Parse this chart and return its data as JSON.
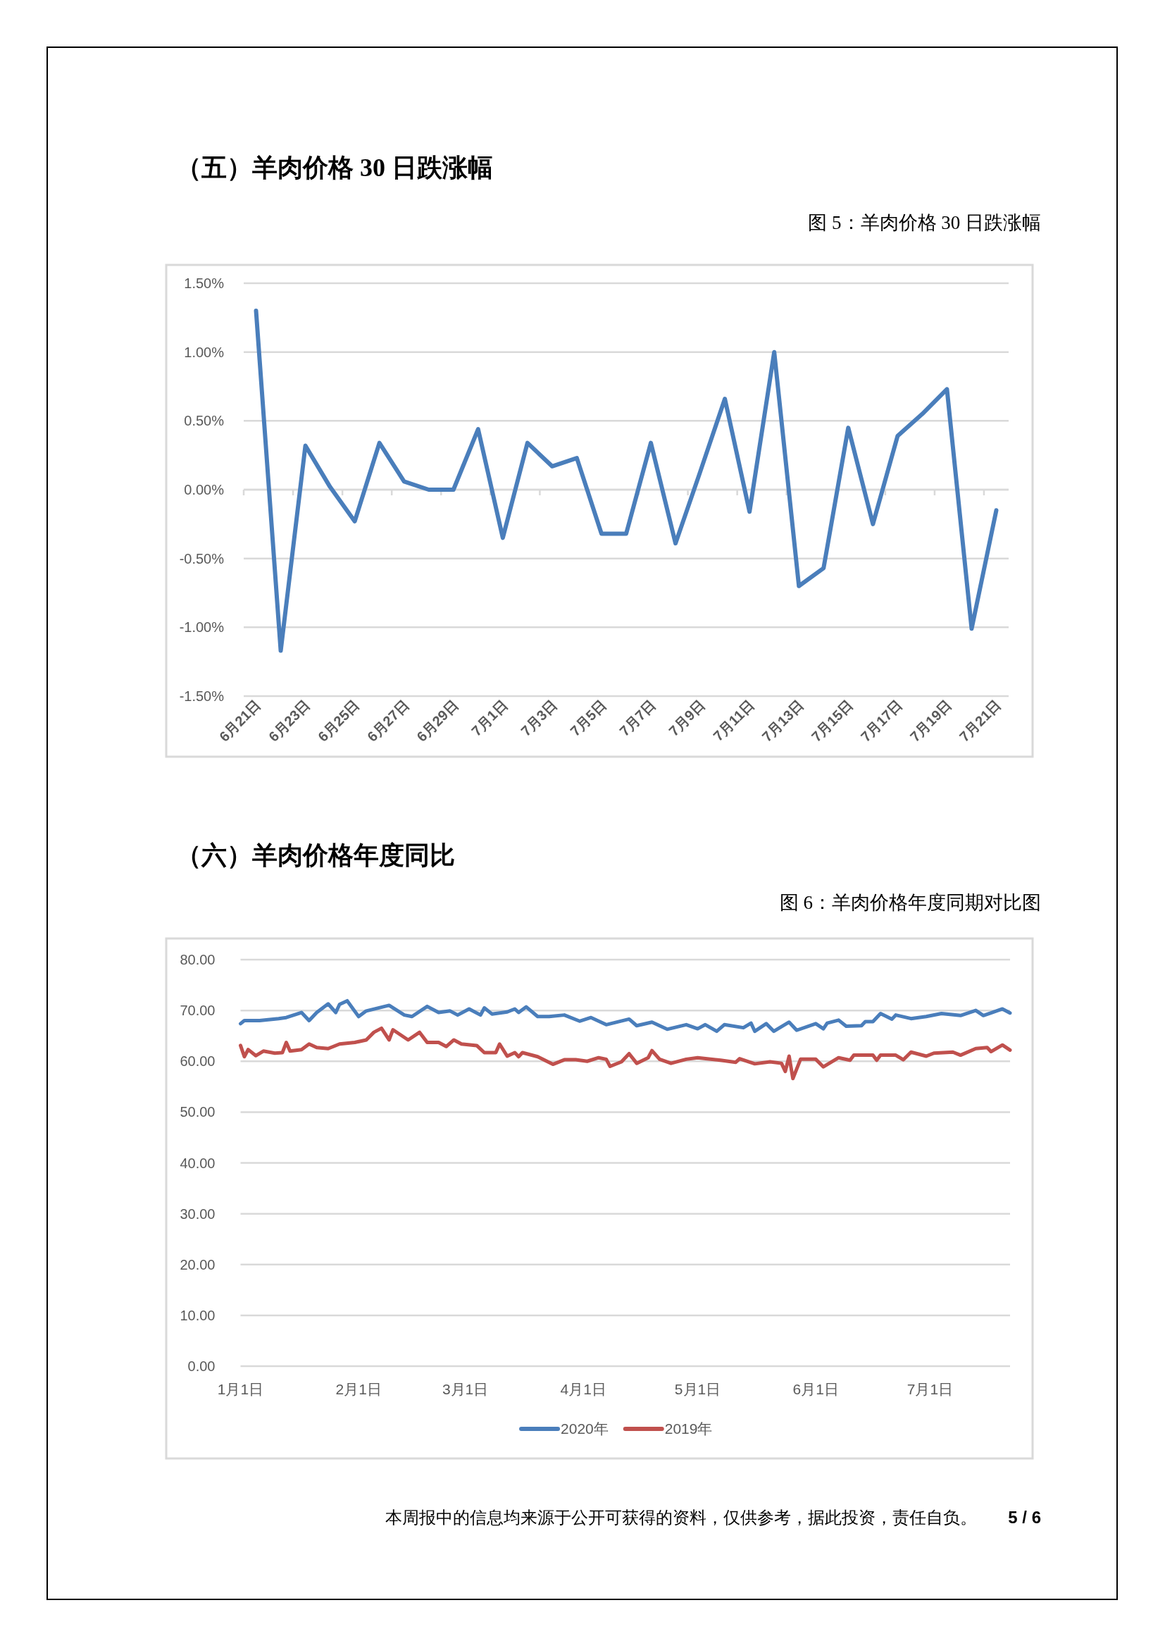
{
  "chart_data": [
    {
      "type": "line",
      "title": "（五）羊肉价格 30 日跌涨幅",
      "subtitle": "图 5：羊肉价格 30 日跌涨幅",
      "categories": [
        "6月21日",
        null,
        "6月23日",
        null,
        "6月25日",
        null,
        "6月27日",
        null,
        "6月29日",
        null,
        "7月1日",
        null,
        "7月3日",
        null,
        "7月5日",
        null,
        "7月7日",
        null,
        "7月9日",
        null,
        "7月11日",
        null,
        "7月13日",
        null,
        "7月15日",
        null,
        "7月17日",
        null,
        "7月19日",
        null,
        "7月21日"
      ],
      "series": [
        {
          "color": "#4a7ebb",
          "values": [
            1.3,
            -1.17,
            0.32,
            0.02,
            -0.23,
            0.34,
            0.06,
            0.0,
            0.0,
            0.44,
            -0.35,
            0.34,
            0.17,
            0.23,
            -0.32,
            -0.32,
            0.34,
            -0.39,
            0.13,
            0.66,
            -0.16,
            1.0,
            -0.7,
            -0.57,
            0.45,
            -0.25,
            0.39,
            0.55,
            0.73,
            -1.01,
            -0.15
          ]
        }
      ],
      "ylim": [
        -1.5,
        1.5
      ],
      "yticks": [
        {
          "value": 1.5,
          "label": "1.50%"
        },
        {
          "value": 1.0,
          "label": "1.00%"
        },
        {
          "value": 0.5,
          "label": "0.50%"
        },
        {
          "value": 0,
          "label": "0.00%"
        },
        {
          "value": -0.5,
          "label": "-0.50%"
        },
        {
          "value": -1.0,
          "label": "-1.00%"
        },
        {
          "value": -1.5,
          "label": "-1.50%"
        }
      ],
      "grid": "y"
    },
    {
      "type": "line",
      "title": "（六）羊肉价格年度同比",
      "subtitle": "图 6：羊肉价格年度同期对比图",
      "series": [
        {
          "name": "2020年",
          "color": "#4a7ebb",
          "x": [
            "--01-01",
            "--01-02",
            "--01-06",
            "--01-11",
            "--01-13",
            "--01-17",
            "--01-19",
            "--01-21",
            "--01-24",
            "--01-26",
            "--01-27",
            "--01-29",
            "--02-01",
            "--02-03",
            "--02-09",
            "--02-13",
            "--02-15",
            "--02-19",
            "--02-22",
            "--02-25",
            "--02-27",
            "--03-02",
            "--03-05",
            "--03-06",
            "--03-08",
            "--03-12",
            "--03-14",
            "--03-15",
            "--03-17",
            "--03-20",
            "--03-23",
            "--03-27",
            "--03-31",
            "--04-03",
            "--04-07",
            "--04-13",
            "--04-15",
            "--04-19",
            "--04-23",
            "--04-28",
            "--05-01",
            "--05-03",
            "--05-06",
            "--05-08",
            "--05-13",
            "--05-15",
            "--05-16",
            "--05-19",
            "--05-21",
            "--05-25",
            "--05-27",
            "--06-01",
            "--06-03",
            "--06-04",
            "--06-07",
            "--06-09",
            "--06-13",
            "--06-14",
            "--06-16",
            "--06-18",
            "--06-21",
            "--06-22",
            "--06-26",
            "--06-30",
            "--07-04",
            "--07-09",
            "--07-13",
            "--07-15",
            "--07-17",
            "--07-20",
            "--07-22"
          ],
          "values": [
            67.4,
            68.0,
            68.0,
            68.4,
            68.6,
            69.6,
            68.0,
            69.6,
            71.3,
            69.6,
            71.2,
            71.9,
            68.8,
            69.9,
            71.0,
            69.1,
            68.8,
            70.8,
            69.6,
            69.9,
            69.1,
            70.3,
            69.1,
            70.5,
            69.3,
            69.7,
            70.3,
            69.6,
            70.7,
            68.8,
            68.8,
            69.1,
            67.9,
            68.6,
            67.2,
            68.3,
            67.0,
            67.7,
            66.3,
            67.2,
            66.4,
            67.2,
            65.9,
            67.2,
            66.6,
            67.5,
            65.9,
            67.4,
            65.9,
            67.7,
            66.1,
            67.4,
            66.4,
            67.5,
            68.1,
            66.9,
            67.0,
            67.8,
            67.8,
            69.4,
            68.3,
            69.1,
            68.4,
            68.8,
            69.4,
            69.0,
            70.0,
            69.0,
            69.5,
            70.3,
            69.5
          ]
        },
        {
          "name": "2019年",
          "color": "#c0504d",
          "x": [
            "--01-01",
            "--01-02",
            "--01-03",
            "--01-05",
            "--01-07",
            "--01-10",
            "--01-12",
            "--01-13",
            "--01-14",
            "--01-17",
            "--01-19",
            "--01-21",
            "--01-24",
            "--01-27",
            "--01-31",
            "--02-03",
            "--02-05",
            "--02-07",
            "--02-09",
            "--02-10",
            "--02-14",
            "--02-17",
            "--02-19",
            "--02-22",
            "--02-24",
            "--02-26",
            "--02-28",
            "--03-04",
            "--03-06",
            "--03-09",
            "--03-10",
            "--03-12",
            "--03-14",
            "--03-15",
            "--03-16",
            "--03-20",
            "--03-24",
            "--03-27",
            "--03-30",
            "--04-02",
            "--04-05",
            "--04-07",
            "--04-08",
            "--04-11",
            "--04-13",
            "--04-15",
            "--04-18",
            "--04-19",
            "--04-21",
            "--04-24",
            "--04-28",
            "--05-01",
            "--05-07",
            "--05-11",
            "--05-12",
            "--05-16",
            "--05-20",
            "--05-23",
            "--05-24",
            "--05-25",
            "--05-26",
            "--05-28",
            "--06-01",
            "--06-03",
            "--06-07",
            "--06-10",
            "--06-11",
            "--06-16",
            "--06-17",
            "--06-18",
            "--06-22",
            "--06-24",
            "--06-26",
            "--06-30",
            "--07-02",
            "--07-07",
            "--07-09",
            "--07-13",
            "--07-16",
            "--07-17",
            "--07-20",
            "--07-22"
          ],
          "values": [
            63.1,
            60.9,
            62.3,
            61.1,
            62.0,
            61.6,
            61.7,
            63.7,
            62.0,
            62.3,
            63.4,
            62.7,
            62.5,
            63.4,
            63.7,
            64.2,
            65.7,
            66.5,
            64.2,
            66.2,
            64.2,
            65.7,
            63.7,
            63.7,
            62.9,
            64.2,
            63.4,
            63.1,
            61.7,
            61.7,
            63.4,
            61.0,
            61.7,
            60.9,
            61.7,
            60.9,
            59.4,
            60.3,
            60.3,
            60.0,
            60.7,
            60.4,
            59.0,
            59.9,
            61.5,
            59.6,
            60.7,
            62.1,
            60.4,
            59.6,
            60.4,
            60.7,
            60.2,
            59.8,
            60.5,
            59.5,
            59.9,
            59.6,
            58.0,
            61.0,
            56.6,
            60.4,
            60.4,
            58.9,
            60.7,
            60.2,
            61.2,
            61.2,
            60.2,
            61.2,
            61.2,
            60.3,
            61.8,
            61.0,
            61.6,
            61.8,
            61.2,
            62.5,
            62.7,
            61.9,
            63.2,
            62.2
          ]
        }
      ],
      "xlim": [
        "--01-01",
        "--07-22"
      ],
      "xticks": [
        {
          "value": "--01-01",
          "label": "1月1日"
        },
        {
          "value": "--02-01",
          "label": "2月1日"
        },
        {
          "value": "--03-01",
          "label": "3月1日"
        },
        {
          "value": "--04-01",
          "label": "4月1日"
        },
        {
          "value": "--05-01",
          "label": "5月1日"
        },
        {
          "value": "--06-01",
          "label": "6月1日"
        },
        {
          "value": "--07-01",
          "label": "7月1日"
        }
      ],
      "ylim": [
        0,
        80
      ],
      "yticks": [
        {
          "value": 80,
          "label": "80.00"
        },
        {
          "value": 70,
          "label": "70.00"
        },
        {
          "value": 60,
          "label": "60.00"
        },
        {
          "value": 50,
          "label": "50.00"
        },
        {
          "value": 40,
          "label": "40.00"
        },
        {
          "value": 30,
          "label": "30.00"
        },
        {
          "value": 20,
          "label": "20.00"
        },
        {
          "value": 10,
          "label": "10.00"
        },
        {
          "value": 0,
          "label": "0.00"
        }
      ],
      "grid": "y",
      "legend": "bottom",
      "annotations": [
        "本周报中的信息均来源于公开可获得的资料，仅供参考，据此投资，责任自负。",
        "5 / 6"
      ]
    }
  ]
}
